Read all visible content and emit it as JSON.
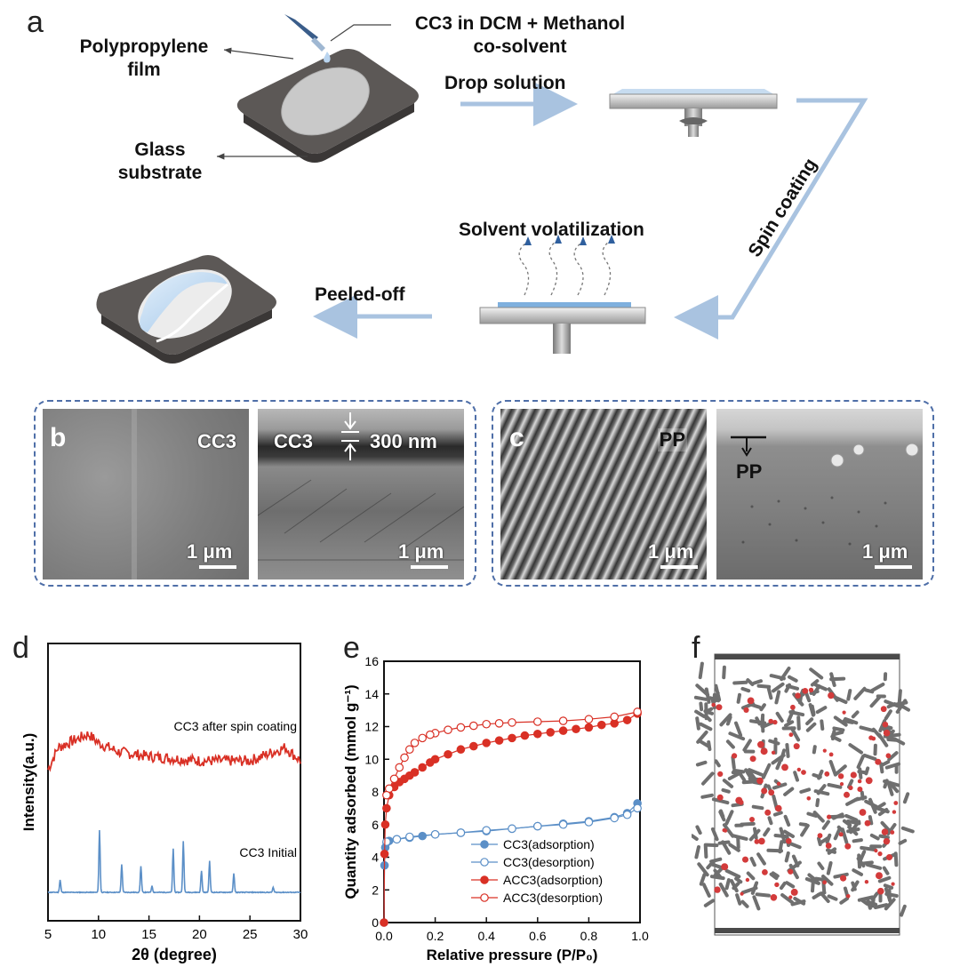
{
  "figure": {
    "panel_a": {
      "letter": "a",
      "labels": {
        "film": "Polypropylene\nfilm",
        "solution": "CC3 in DCM + Methanol\nco-solvent",
        "substrate": "Glass\nsubstrate",
        "drop": "Drop solution",
        "spin": "Spin coating",
        "volatilization": "Solvent volatilization",
        "peel": "Peeled-off"
      }
    },
    "panel_b": {
      "letter": "b",
      "left": {
        "label": "CC3",
        "scale": "1 μm"
      },
      "right": {
        "label": "CC3",
        "thickness": "300 nm",
        "scale": "1 μm"
      }
    },
    "panel_c": {
      "letter": "c",
      "left": {
        "label": "PP",
        "scale": "1 μm"
      },
      "right": {
        "label": "PP",
        "scale": "1 μm"
      }
    },
    "panel_f": {
      "letter": "f"
    }
  },
  "chart_data": [
    {
      "panel": "d",
      "type": "line",
      "xlabel": "2θ (degree)",
      "ylabel": "Intensity(a.u.)",
      "xlim": [
        5,
        30
      ],
      "xticks": [
        5,
        10,
        15,
        20,
        25,
        30
      ],
      "colors": {
        "after": "#d93025",
        "initial": "#5b8fc7"
      },
      "annotations": [
        "CC3 after spin coating",
        "CC3 Initial"
      ],
      "series": [
        {
          "name": "CC3 after spin coating",
          "shape": "broad amorphous hump near 9°",
          "x": [
            5,
            6,
            8,
            9,
            10,
            12,
            15,
            20,
            25,
            28.5,
            30
          ],
          "y": [
            0.58,
            0.63,
            0.65,
            0.66,
            0.64,
            0.62,
            0.61,
            0.6,
            0.6,
            0.63,
            0.6
          ]
        },
        {
          "name": "CC3 Initial",
          "peaks": [
            6.2,
            10.1,
            12.3,
            14.2,
            15.3,
            17.4,
            18.4,
            20.2,
            21.0,
            23.4,
            27.3
          ],
          "peak_heights": [
            0.2,
            1.0,
            0.45,
            0.42,
            0.1,
            0.7,
            0.82,
            0.35,
            0.5,
            0.3,
            0.08
          ]
        }
      ]
    },
    {
      "panel": "e",
      "type": "scatter",
      "xlabel": "Relative pressure (P/P₀)",
      "ylabel": "Quantity adsorbed (mmol g⁻¹)",
      "xlim": [
        0,
        1.0
      ],
      "ylim": [
        0,
        16
      ],
      "xticks": [
        0.0,
        0.2,
        0.4,
        0.6,
        0.8,
        1.0
      ],
      "yticks": [
        0,
        2,
        4,
        6,
        8,
        10,
        12,
        14,
        16
      ],
      "legend_position": "bottom-right",
      "series": [
        {
          "name": "CC3(adsorption)",
          "color": "#5b8fc7",
          "filled": true,
          "x": [
            0.0,
            0.002,
            0.005,
            0.01,
            0.02,
            0.05,
            0.1,
            0.15,
            0.2,
            0.3,
            0.4,
            0.5,
            0.6,
            0.7,
            0.8,
            0.9,
            0.95,
            0.99
          ],
          "y": [
            0,
            3.5,
            4.6,
            4.9,
            5.0,
            5.1,
            5.2,
            5.3,
            5.4,
            5.5,
            5.6,
            5.75,
            5.9,
            6.05,
            6.2,
            6.45,
            6.7,
            7.3
          ]
        },
        {
          "name": "CC3(desorption)",
          "color": "#5b8fc7",
          "filled": false,
          "x": [
            0.99,
            0.95,
            0.9,
            0.8,
            0.7,
            0.6,
            0.5,
            0.4,
            0.3,
            0.2,
            0.1,
            0.05,
            0.01
          ],
          "y": [
            7.0,
            6.6,
            6.4,
            6.15,
            6.0,
            5.9,
            5.75,
            5.65,
            5.5,
            5.4,
            5.25,
            5.1,
            4.95
          ]
        },
        {
          "name": "ACC3(adsorption)",
          "color": "#d93025",
          "filled": true,
          "x": [
            0.0,
            0.002,
            0.005,
            0.01,
            0.02,
            0.04,
            0.06,
            0.08,
            0.1,
            0.12,
            0.15,
            0.18,
            0.2,
            0.25,
            0.3,
            0.35,
            0.4,
            0.45,
            0.5,
            0.55,
            0.6,
            0.65,
            0.7,
            0.75,
            0.8,
            0.85,
            0.9,
            0.95,
            0.99
          ],
          "y": [
            0,
            4.2,
            6.0,
            7.0,
            7.8,
            8.3,
            8.6,
            8.8,
            9.0,
            9.2,
            9.5,
            9.8,
            10.0,
            10.3,
            10.6,
            10.8,
            11.0,
            11.15,
            11.3,
            11.45,
            11.55,
            11.65,
            11.75,
            11.85,
            11.95,
            12.1,
            12.2,
            12.4,
            12.8
          ]
        },
        {
          "name": "ACC3(desorption)",
          "color": "#d93025",
          "filled": false,
          "x": [
            0.99,
            0.9,
            0.8,
            0.7,
            0.6,
            0.5,
            0.45,
            0.4,
            0.35,
            0.3,
            0.25,
            0.2,
            0.18,
            0.15,
            0.12,
            0.1,
            0.08,
            0.06,
            0.04,
            0.02,
            0.01
          ],
          "y": [
            12.9,
            12.6,
            12.45,
            12.35,
            12.3,
            12.25,
            12.2,
            12.15,
            12.05,
            11.95,
            11.8,
            11.6,
            11.5,
            11.3,
            11.0,
            10.6,
            10.1,
            9.5,
            8.8,
            8.2,
            7.8
          ]
        }
      ]
    }
  ]
}
